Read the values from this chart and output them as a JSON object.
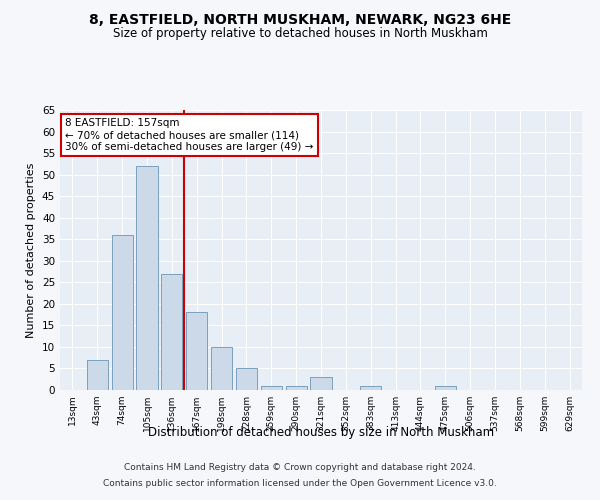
{
  "title1": "8, EASTFIELD, NORTH MUSKHAM, NEWARK, NG23 6HE",
  "title2": "Size of property relative to detached houses in North Muskham",
  "xlabel": "Distribution of detached houses by size in North Muskham",
  "ylabel": "Number of detached properties",
  "bar_color": "#ccd9e8",
  "bar_edge_color": "#7aa0be",
  "categories": [
    "13sqm",
    "43sqm",
    "74sqm",
    "105sqm",
    "136sqm",
    "167sqm",
    "198sqm",
    "228sqm",
    "259sqm",
    "290sqm",
    "321sqm",
    "352sqm",
    "383sqm",
    "413sqm",
    "444sqm",
    "475sqm",
    "506sqm",
    "537sqm",
    "568sqm",
    "599sqm",
    "629sqm"
  ],
  "values": [
    0,
    7,
    36,
    52,
    27,
    18,
    10,
    5,
    1,
    1,
    3,
    0,
    1,
    0,
    0,
    1,
    0,
    0,
    0,
    0,
    0
  ],
  "vline_color": "#cc0000",
  "annotation_text": "8 EASTFIELD: 157sqm\n← 70% of detached houses are smaller (114)\n30% of semi-detached houses are larger (49) →",
  "annotation_box_color": "#ffffff",
  "annotation_box_edge": "#cc0000",
  "ylim": [
    0,
    65
  ],
  "yticks": [
    0,
    5,
    10,
    15,
    20,
    25,
    30,
    35,
    40,
    45,
    50,
    55,
    60,
    65
  ],
  "footnote1": "Contains HM Land Registry data © Crown copyright and database right 2024.",
  "footnote2": "Contains public sector information licensed under the Open Government Licence v3.0.",
  "fig_bg_color": "#f5f7fa",
  "plot_bg_color": "#e8eef5"
}
